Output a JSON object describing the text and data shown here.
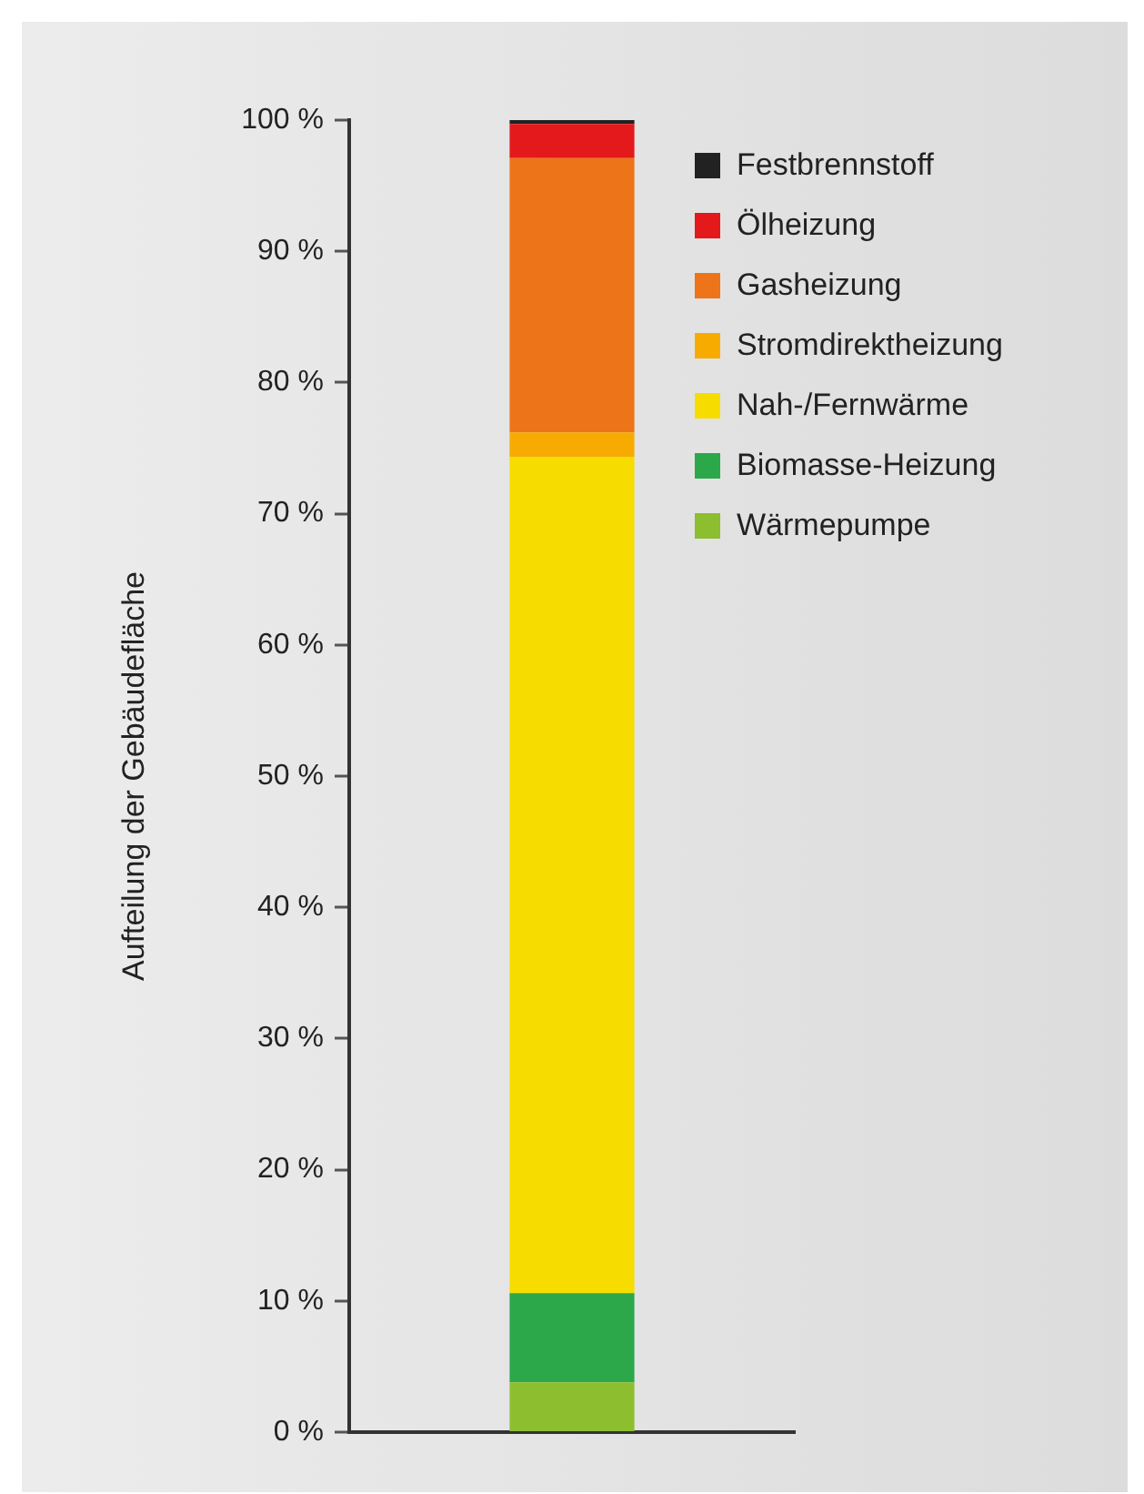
{
  "chart_data": {
    "type": "bar",
    "stacked": true,
    "categories": [
      null
    ],
    "ylabel": "Aufteilung der Gebäudefläche",
    "ylim": [
      0,
      100
    ],
    "yticks": [
      {
        "value": 0,
        "label": "0 %"
      },
      {
        "value": 10,
        "label": "10 %"
      },
      {
        "value": 20,
        "label": "20 %"
      },
      {
        "value": 30,
        "label": "30 %"
      },
      {
        "value": 40,
        "label": "40 %"
      },
      {
        "value": 50,
        "label": "50 %"
      },
      {
        "value": 60,
        "label": "60 %"
      },
      {
        "value": 70,
        "label": "70 %"
      },
      {
        "value": 80,
        "label": "80 %"
      },
      {
        "value": 90,
        "label": "90 %"
      },
      {
        "value": 100,
        "label": "100 %"
      }
    ],
    "series": [
      {
        "name": "Wärmepumpe",
        "color": "#8dbe30",
        "values": [
          3.8
        ]
      },
      {
        "name": "Biomasse-Heizung",
        "color": "#2ca84a",
        "values": [
          6.8
        ]
      },
      {
        "name": "Nah-/Fernwärme",
        "color": "#f7dc00",
        "values": [
          63.7
        ]
      },
      {
        "name": "Stromdirektheizung",
        "color": "#f7ab00",
        "values": [
          1.9
        ]
      },
      {
        "name": "Gasheizung",
        "color": "#ed7418",
        "values": [
          20.9
        ]
      },
      {
        "name": "Ölheizung",
        "color": "#e3191b",
        "values": [
          2.6
        ]
      },
      {
        "name": "Festbrennstoff",
        "color": "#222222",
        "values": [
          0.3
        ]
      }
    ],
    "grid": false,
    "legend": "top right"
  }
}
